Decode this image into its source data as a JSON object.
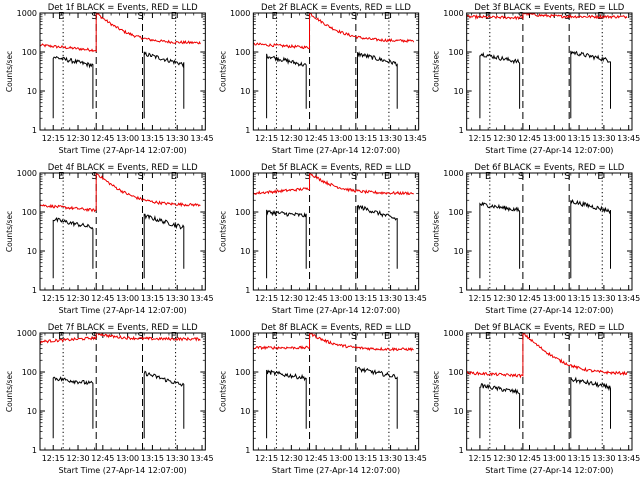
{
  "figure": {
    "background": "#ffffff",
    "axis_color": "#000000",
    "events_color": "#000000",
    "lld_color": "#ee0000"
  },
  "chart_data": [
    {
      "type": "line",
      "title": "Det 1f BLACK = Events, RED = LLD",
      "xlabel": "Start Time (27-Apr-14 12:07:00)",
      "ylabel": "Counts/sec",
      "yscale": "log",
      "xlim": [
        "12:07",
        "13:47"
      ],
      "ylim": [
        1,
        1000
      ],
      "xticks": [
        "12:15",
        "12:30",
        "12:45",
        "13:00",
        "13:15",
        "13:30",
        "13:45"
      ],
      "yticks": [
        "1",
        "10",
        "100",
        "1000"
      ],
      "markers": [
        {
          "time": "12:21",
          "style": "dotted",
          "label": "E"
        },
        {
          "time": "12:41",
          "style": "dashed",
          "label": "S"
        },
        {
          "time": "13:09",
          "style": "dashed",
          "label": "S"
        },
        {
          "time": "13:29",
          "style": "dotted",
          "label": "E"
        }
      ],
      "series": [
        {
          "color": "#ee0000",
          "segments": [
            {
              "x0": "12:07",
              "x1": "12:41",
              "y0": 150,
              "y1": 110,
              "spike": 1000
            },
            {
              "x0": "12:41",
              "x1": "13:44",
              "y0": 1000,
              "y1": 170,
              "decay": true
            }
          ]
        },
        {
          "color": "#000000",
          "segments": [
            {
              "x0": "12:15",
              "x1": "12:39",
              "y0": 75,
              "y1": 45
            },
            {
              "x0": "13:10",
              "x1": "13:34",
              "y0": 90,
              "y1": 48
            }
          ]
        }
      ]
    },
    {
      "type": "line",
      "title": "Det 2f BLACK = Events, RED = LLD",
      "xlabel": "Start Time (27-Apr-14 12:07:00)",
      "ylabel": "Counts/sec",
      "yscale": "log",
      "xlim": [
        "12:07",
        "13:47"
      ],
      "ylim": [
        1,
        1000
      ],
      "xticks": [
        "12:15",
        "12:30",
        "12:45",
        "13:00",
        "13:15",
        "13:30",
        "13:45"
      ],
      "yticks": [
        "1",
        "10",
        "100",
        "1000"
      ],
      "markers": [
        {
          "time": "12:21",
          "style": "dotted",
          "label": "E"
        },
        {
          "time": "12:41",
          "style": "dashed",
          "label": "S"
        },
        {
          "time": "13:09",
          "style": "dashed",
          "label": "S"
        },
        {
          "time": "13:29",
          "style": "dotted",
          "label": "E"
        }
      ],
      "series": [
        {
          "color": "#ee0000",
          "segments": [
            {
              "x0": "12:07",
              "x1": "12:41",
              "y0": 160,
              "y1": 130,
              "spike": 1000
            },
            {
              "x0": "12:41",
              "x1": "13:44",
              "y0": 1000,
              "y1": 190,
              "decay": true
            }
          ]
        },
        {
          "color": "#000000",
          "segments": [
            {
              "x0": "12:15",
              "x1": "12:39",
              "y0": 80,
              "y1": 45
            },
            {
              "x0": "13:10",
              "x1": "13:34",
              "y0": 90,
              "y1": 50
            }
          ]
        }
      ]
    },
    {
      "type": "line",
      "title": "Det 3f BLACK = Events, RED = LLD",
      "xlabel": "Start Time (27-Apr-14 12:07:00)",
      "ylabel": "Counts/sec",
      "yscale": "log",
      "xlim": [
        "12:07",
        "13:47"
      ],
      "ylim": [
        1,
        1000
      ],
      "xticks": [
        "12:15",
        "12:30",
        "12:45",
        "13:00",
        "13:15",
        "13:30",
        "13:45"
      ],
      "yticks": [
        "1",
        "10",
        "100",
        "1000"
      ],
      "markers": [
        {
          "time": "12:21",
          "style": "dotted",
          "label": "E"
        },
        {
          "time": "12:41",
          "style": "dashed",
          "label": "S"
        },
        {
          "time": "13:09",
          "style": "dashed",
          "label": "S"
        },
        {
          "time": "13:29",
          "style": "dotted",
          "label": "E"
        }
      ],
      "series": [
        {
          "color": "#ee0000",
          "segments": [
            {
              "x0": "12:07",
              "x1": "12:41",
              "y0": 800,
              "y1": 750,
              "spike": 1000
            },
            {
              "x0": "12:41",
              "x1": "13:44",
              "y0": 1000,
              "y1": 800,
              "decay": true
            }
          ]
        },
        {
          "color": "#000000",
          "segments": [
            {
              "x0": "12:15",
              "x1": "12:39",
              "y0": 90,
              "y1": 55
            },
            {
              "x0": "13:10",
              "x1": "13:34",
              "y0": 100,
              "y1": 60
            }
          ]
        }
      ]
    },
    {
      "type": "line",
      "title": "Det 4f BLACK = Events, RED = LLD",
      "xlabel": "Start Time (27-Apr-14 12:07:00)",
      "ylabel": "Counts/sec",
      "yscale": "log",
      "xlim": [
        "12:07",
        "13:47"
      ],
      "ylim": [
        1,
        1000
      ],
      "xticks": [
        "12:15",
        "12:30",
        "12:45",
        "13:00",
        "13:15",
        "13:30",
        "13:45"
      ],
      "yticks": [
        "1",
        "10",
        "100",
        "1000"
      ],
      "markers": [
        {
          "time": "12:21",
          "style": "dotted",
          "label": "E"
        },
        {
          "time": "12:41",
          "style": "dashed",
          "label": "S"
        },
        {
          "time": "13:09",
          "style": "dashed",
          "label": "S"
        },
        {
          "time": "13:29",
          "style": "dotted",
          "label": "E"
        }
      ],
      "series": [
        {
          "color": "#ee0000",
          "segments": [
            {
              "x0": "12:07",
              "x1": "12:41",
              "y0": 150,
              "y1": 110,
              "spike": 1000
            },
            {
              "x0": "12:41",
              "x1": "13:44",
              "y0": 1000,
              "y1": 150,
              "decay": true
            }
          ]
        },
        {
          "color": "#000000",
          "segments": [
            {
              "x0": "12:15",
              "x1": "12:39",
              "y0": 65,
              "y1": 40
            },
            {
              "x0": "13:10",
              "x1": "13:34",
              "y0": 80,
              "y1": 40
            }
          ]
        }
      ]
    },
    {
      "type": "line",
      "title": "Det 5f BLACK = Events, RED = LLD",
      "xlabel": "Start Time (27-Apr-14 12:07:00)",
      "ylabel": "Counts/sec",
      "yscale": "log",
      "xlim": [
        "12:07",
        "13:47"
      ],
      "ylim": [
        1,
        1000
      ],
      "xticks": [
        "12:15",
        "12:30",
        "12:45",
        "13:00",
        "13:15",
        "13:30",
        "13:45"
      ],
      "yticks": [
        "1",
        "10",
        "100",
        "1000"
      ],
      "markers": [
        {
          "time": "12:21",
          "style": "dotted",
          "label": "E"
        },
        {
          "time": "12:41",
          "style": "dashed",
          "label": "S"
        },
        {
          "time": "13:09",
          "style": "dashed",
          "label": "S"
        },
        {
          "time": "13:29",
          "style": "dotted",
          "label": "E"
        }
      ],
      "series": [
        {
          "color": "#ee0000",
          "segments": [
            {
              "x0": "12:07",
              "x1": "12:41",
              "y0": 300,
              "y1": 400,
              "spike": 1000
            },
            {
              "x0": "12:41",
              "x1": "13:44",
              "y0": 1000,
              "y1": 300,
              "decay": true
            }
          ]
        },
        {
          "color": "#000000",
          "segments": [
            {
              "x0": "12:15",
              "x1": "12:39",
              "y0": 100,
              "y1": 80
            },
            {
              "x0": "13:10",
              "x1": "13:34",
              "y0": 140,
              "y1": 65
            }
          ]
        }
      ]
    },
    {
      "type": "line",
      "title": "Det 6f BLACK = Events, RED = LLD",
      "xlabel": "Start Time (27-Apr-14 12:07:00)",
      "ylabel": "Counts/sec",
      "yscale": "log",
      "xlim": [
        "12:07",
        "13:47"
      ],
      "ylim": [
        1,
        1000
      ],
      "xticks": [
        "12:15",
        "12:30",
        "12:45",
        "13:00",
        "13:15",
        "13:30",
        "13:45"
      ],
      "yticks": [
        "1",
        "10",
        "100",
        "1000"
      ],
      "markers": [
        {
          "time": "12:21",
          "style": "dotted",
          "label": "E"
        },
        {
          "time": "12:41",
          "style": "dashed",
          "label": "S"
        },
        {
          "time": "13:09",
          "style": "dashed",
          "label": "S"
        },
        {
          "time": "13:29",
          "style": "dotted",
          "label": "E"
        }
      ],
      "series": [
        {
          "color": "#000000",
          "segments": [
            {
              "x0": "12:15",
              "x1": "12:39",
              "y0": 160,
              "y1": 110
            },
            {
              "x0": "13:10",
              "x1": "13:34",
              "y0": 190,
              "y1": 105
            }
          ]
        }
      ]
    },
    {
      "type": "line",
      "title": "Det 7f BLACK = Events, RED = LLD",
      "xlabel": "Start Time (27-Apr-14 12:07:00)",
      "ylabel": "Counts/sec",
      "yscale": "log",
      "xlim": [
        "12:07",
        "13:47"
      ],
      "ylim": [
        1,
        1000
      ],
      "xticks": [
        "12:15",
        "12:30",
        "12:45",
        "13:00",
        "13:15",
        "13:30",
        "13:45"
      ],
      "yticks": [
        "1",
        "10",
        "100",
        "1000"
      ],
      "markers": [
        {
          "time": "12:21",
          "style": "dotted",
          "label": "E"
        },
        {
          "time": "12:41",
          "style": "dashed",
          "label": "S"
        },
        {
          "time": "13:09",
          "style": "dashed",
          "label": "S"
        },
        {
          "time": "13:29",
          "style": "dotted",
          "label": "E"
        }
      ],
      "series": [
        {
          "color": "#ee0000",
          "segments": [
            {
              "x0": "12:07",
              "x1": "12:41",
              "y0": 600,
              "y1": 750,
              "spike": 1000
            },
            {
              "x0": "12:41",
              "x1": "13:44",
              "y0": 1000,
              "y1": 700,
              "decay": true
            }
          ]
        },
        {
          "color": "#000000",
          "segments": [
            {
              "x0": "12:15",
              "x1": "12:39",
              "y0": 70,
              "y1": 50
            },
            {
              "x0": "13:10",
              "x1": "13:34",
              "y0": 95,
              "y1": 45
            }
          ]
        }
      ]
    },
    {
      "type": "line",
      "title": "Det 8f BLACK = Events, RED = LLD",
      "xlabel": "Start Time (27-Apr-14 12:07:00)",
      "ylabel": "Counts/sec",
      "yscale": "log",
      "xlim": [
        "12:07",
        "13:47"
      ],
      "ylim": [
        1,
        1000
      ],
      "xticks": [
        "12:15",
        "12:30",
        "12:45",
        "13:00",
        "13:15",
        "13:30",
        "13:45"
      ],
      "yticks": [
        "1",
        "10",
        "100",
        "1000"
      ],
      "markers": [
        {
          "time": "12:21",
          "style": "dotted",
          "label": "E"
        },
        {
          "time": "12:41",
          "style": "dashed",
          "label": "S"
        },
        {
          "time": "13:09",
          "style": "dashed",
          "label": "S"
        },
        {
          "time": "13:29",
          "style": "dotted",
          "label": "E"
        }
      ],
      "series": [
        {
          "color": "#ee0000",
          "segments": [
            {
              "x0": "12:07",
              "x1": "12:41",
              "y0": 420,
              "y1": 420,
              "spike": 1000
            },
            {
              "x0": "12:41",
              "x1": "13:44",
              "y0": 1000,
              "y1": 380,
              "decay": true
            }
          ]
        },
        {
          "color": "#000000",
          "segments": [
            {
              "x0": "12:15",
              "x1": "12:39",
              "y0": 100,
              "y1": 70
            },
            {
              "x0": "13:10",
              "x1": "13:34",
              "y0": 120,
              "y1": 75
            }
          ]
        }
      ]
    },
    {
      "type": "line",
      "title": "Det 9f BLACK = Events, RED = LLD",
      "xlabel": "Start Time (27-Apr-14 12:07:00)",
      "ylabel": "Counts/sec",
      "yscale": "log",
      "xlim": [
        "12:07",
        "13:47"
      ],
      "ylim": [
        1,
        1000
      ],
      "xticks": [
        "12:15",
        "12:30",
        "12:45",
        "13:00",
        "13:15",
        "13:30",
        "13:45"
      ],
      "yticks": [
        "1",
        "10",
        "100",
        "1000"
      ],
      "markers": [
        {
          "time": "12:21",
          "style": "dotted",
          "label": "E"
        },
        {
          "time": "12:41",
          "style": "dashed",
          "label": "S"
        },
        {
          "time": "13:09",
          "style": "dashed",
          "label": "S"
        },
        {
          "time": "13:29",
          "style": "dotted",
          "label": "E"
        }
      ],
      "series": [
        {
          "color": "#ee0000",
          "segments": [
            {
              "x0": "12:07",
              "x1": "12:41",
              "y0": 95,
              "y1": 80,
              "spike": 1000
            },
            {
              "x0": "12:41",
              "x1": "13:44",
              "y0": 1000,
              "y1": 90,
              "decay": true
            }
          ]
        },
        {
          "color": "#000000",
          "segments": [
            {
              "x0": "12:15",
              "x1": "12:39",
              "y0": 45,
              "y1": 30
            },
            {
              "x0": "13:10",
              "x1": "13:34",
              "y0": 65,
              "y1": 40
            }
          ]
        }
      ]
    }
  ]
}
